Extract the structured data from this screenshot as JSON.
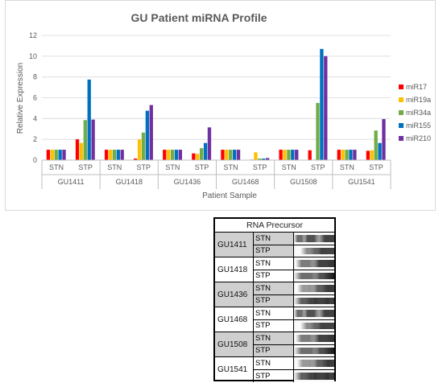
{
  "chart_data": {
    "type": "bar",
    "title": "GU Patient miRNA Profile",
    "xlabel": "Patient Sample",
    "ylabel": "Relative Expression",
    "ylim": [
      0,
      12
    ],
    "yticks": [
      "0",
      "2",
      "4",
      "6",
      "8",
      "10",
      "12"
    ],
    "grid": true,
    "legend_position": "right",
    "patients": [
      "GU1411",
      "GU1418",
      "GU1436",
      "GU1468",
      "GU1508",
      "GU1541"
    ],
    "conditions": [
      "STN",
      "STP"
    ],
    "categories": [
      "GU1411 STN",
      "GU1411 STP",
      "GU1418 STN",
      "GU1418 STP",
      "GU1436 STN",
      "GU1436 STP",
      "GU1468 STN",
      "GU1468 STP",
      "GU1508 STN",
      "GU1508 STP",
      "GU1541 STN",
      "GU1541 STP"
    ],
    "series": [
      {
        "name": "miR17",
        "color": "#ff0000",
        "values": [
          1,
          2.0,
          1,
          0.15,
          1,
          0.65,
          1,
          0.05,
          1,
          0.95,
          1,
          0.9
        ]
      },
      {
        "name": "miR19a",
        "color": "#ffc000",
        "values": [
          1,
          1.65,
          1,
          2.0,
          1,
          0.6,
          1,
          0.75,
          1,
          0.05,
          1,
          0.95
        ]
      },
      {
        "name": "miR34a",
        "color": "#70ad47",
        "values": [
          1,
          3.85,
          1,
          2.65,
          1,
          1.15,
          1,
          0.15,
          1,
          5.5,
          1,
          2.85
        ]
      },
      {
        "name": "miR155",
        "color": "#0070c0",
        "values": [
          1,
          7.75,
          1,
          4.75,
          1,
          1.65,
          1,
          0.15,
          1,
          10.7,
          1,
          1.65
        ]
      },
      {
        "name": "miR210",
        "color": "#7030a0",
        "values": [
          1,
          3.9,
          1,
          5.3,
          1,
          3.15,
          1,
          0.2,
          1,
          10.0,
          1,
          3.95
        ]
      }
    ]
  },
  "rna_table": {
    "title": "RNA Precursor",
    "groups": [
      {
        "patient": "GU1411",
        "rows": [
          "STN",
          "STP"
        ]
      },
      {
        "patient": "GU1418",
        "rows": [
          "STN",
          "STP"
        ]
      },
      {
        "patient": "GU1436",
        "rows": [
          "STN",
          "STP"
        ]
      },
      {
        "patient": "GU1468",
        "rows": [
          "STN",
          "STP"
        ]
      },
      {
        "patient": "GU1508",
        "rows": [
          "STN",
          "STP"
        ]
      },
      {
        "patient": "GU1541",
        "rows": [
          "STN",
          "STP"
        ]
      }
    ]
  }
}
